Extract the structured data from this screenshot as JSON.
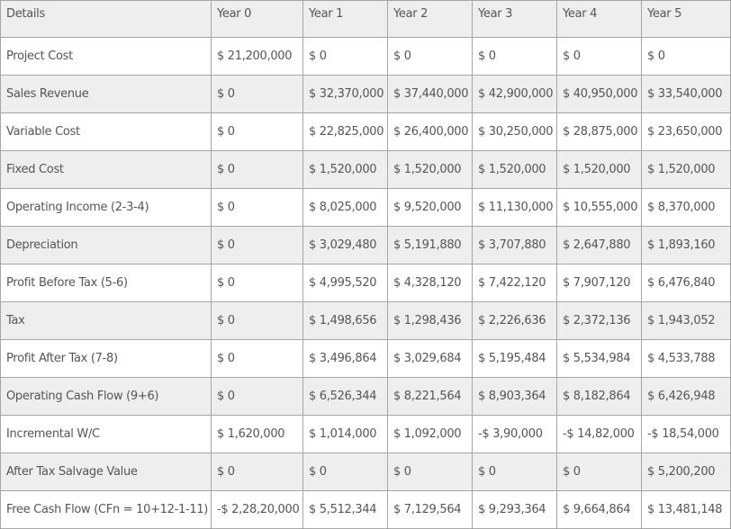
{
  "table": {
    "header": [
      "Details",
      "Year 0",
      "Year 1",
      "Year 2",
      "Year 3",
      "Year 4",
      "Year 5"
    ],
    "rows": [
      [
        "Project Cost",
        "$ 21,200,000",
        "$ 0",
        "$ 0",
        "$ 0",
        "$ 0",
        "$ 0"
      ],
      [
        "Sales Revenue",
        "$ 0",
        "$ 32,370,000",
        "$ 37,440,000",
        "$ 42,900,000",
        "$ 40,950,000",
        "$ 33,540,000"
      ],
      [
        "Variable Cost",
        "$ 0",
        "$ 22,825,000",
        "$ 26,400,000",
        "$ 30,250,000",
        "$ 28,875,000",
        "$ 23,650,000"
      ],
      [
        "Fixed Cost",
        "$ 0",
        "$ 1,520,000",
        "$ 1,520,000",
        "$ 1,520,000",
        "$ 1,520,000",
        "$ 1,520,000"
      ],
      [
        "Operating Income (2-3-4)",
        "$ 0",
        "$ 8,025,000",
        "$ 9,520,000",
        "$ 11,130,000",
        "$ 10,555,000",
        "$ 8,370,000"
      ],
      [
        "Depreciation",
        "$ 0",
        "$ 3,029,480",
        "$ 5,191,880",
        "$ 3,707,880",
        "$ 2,647,880",
        "$ 1,893,160"
      ],
      [
        "Profit Before Tax (5-6)",
        "$ 0",
        "$ 4,995,520",
        "$ 4,328,120",
        "$ 7,422,120",
        "$ 7,907,120",
        "$ 6,476,840"
      ],
      [
        "Tax",
        "$ 0",
        "$ 1,498,656",
        "$ 1,298,436",
        "$ 2,226,636",
        "$ 2,372,136",
        "$ 1,943,052"
      ],
      [
        "Profit After Tax (7-8)",
        "$ 0",
        "$ 3,496,864",
        "$ 3,029,684",
        "$ 5,195,484",
        "$ 5,534,984",
        "$ 4,533,788"
      ],
      [
        "Operating Cash Flow (9+6)",
        "$ 0",
        "$ 6,526,344",
        "$ 8,221,564",
        "$ 8,903,364",
        "$ 8,182,864",
        "$ 6,426,948"
      ],
      [
        "Incremental W/C",
        "$ 1,620,000",
        "$ 1,014,000",
        "$ 1,092,000",
        "-$ 3,90,000",
        "-$ 14,82,000",
        "-$ 18,54,000"
      ],
      [
        "After Tax Salvage Value",
        "$ 0",
        "$ 0",
        "$ 0",
        "$ 0",
        "$ 0",
        "$ 5,200,200"
      ],
      [
        "Free Cash Flow (CFn = 10+12-1-11)",
        "-$ 2,28,20,000",
        "$ 5,512,344",
        "$ 7,129,564",
        "$ 9,293,364",
        "$ 9,664,864",
        "$ 13,481,148"
      ]
    ]
  }
}
